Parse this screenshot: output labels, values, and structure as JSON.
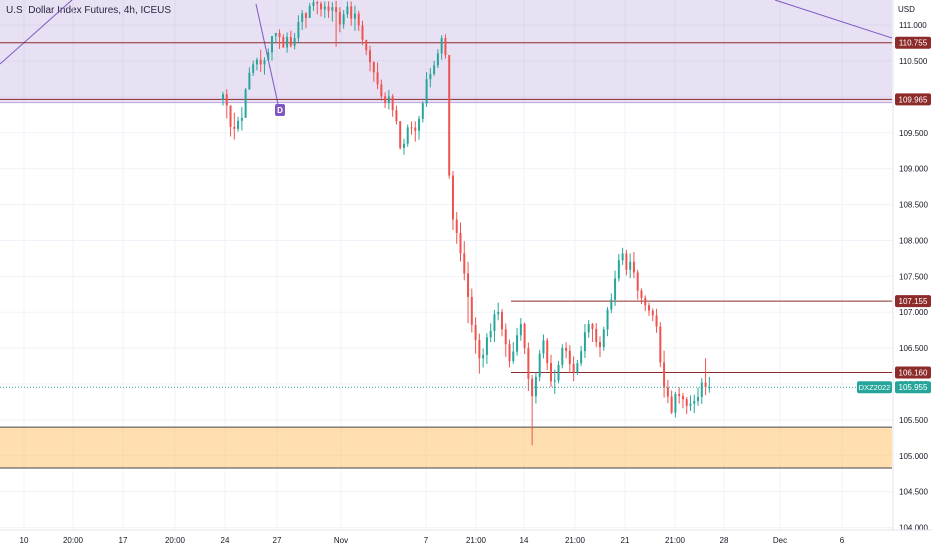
{
  "chart_data": {
    "type": "candlestick",
    "title": "U.S. Dollar Index Futures, 4h, ICEUS",
    "currency": "USD",
    "symbol": "DXZ2022",
    "last_price": "105.955",
    "y_range": [
      103.98,
      111.35
    ],
    "y_ticks": [
      "111.000",
      "110.500",
      "110.000",
      "109.500",
      "109.000",
      "108.500",
      "108.000",
      "107.500",
      "107.000",
      "106.500",
      "106.000",
      "105.500",
      "105.000",
      "104.500",
      "104.000"
    ],
    "x_ticks": [
      "10",
      "20:00",
      "17",
      "20:00",
      "24",
      "27",
      "Nov",
      "7",
      "21:00",
      "14",
      "21:00",
      "21",
      "21:00",
      "28",
      "Dec",
      "6"
    ],
    "price_lines": [
      {
        "label": "110.755",
        "value": 110.755
      },
      {
        "label": "109.965",
        "value": 109.965
      },
      {
        "label": "107.155",
        "value": 107.155
      },
      {
        "label": "106.160",
        "value": 106.16
      }
    ],
    "zones": [
      {
        "top": 111.4,
        "bottom": 109.92,
        "color": "#7e57c2"
      },
      {
        "top": 105.4,
        "bottom": 104.83,
        "color": "#ffb74d"
      }
    ],
    "marker": {
      "label": "D"
    },
    "candles": [
      [
        109.962,
        110.036,
        109.881,
        110.071
      ],
      [
        110.036,
        109.881,
        109.701,
        110.107
      ],
      [
        109.881,
        109.583,
        109.448,
        109.881
      ],
      [
        109.583,
        109.554,
        109.406,
        109.779
      ],
      [
        109.554,
        109.667,
        109.516,
        109.723
      ],
      [
        109.667,
        109.709,
        109.533,
        109.86
      ],
      [
        109.709,
        110.102,
        109.709,
        110.123
      ],
      [
        110.102,
        110.335,
        110.099,
        110.413
      ],
      [
        110.335,
        110.453,
        110.294,
        110.505
      ],
      [
        110.453,
        110.52,
        110.369,
        110.546
      ],
      [
        110.52,
        110.453,
        110.348,
        110.658
      ],
      [
        110.453,
        110.509,
        110.311,
        110.552
      ],
      [
        110.509,
        110.623,
        110.509,
        110.676
      ],
      [
        110.623,
        110.849,
        110.507,
        110.849
      ],
      [
        110.849,
        110.891,
        110.755,
        110.891
      ],
      [
        110.891,
        110.834,
        110.668,
        110.942
      ],
      [
        110.834,
        110.69,
        110.682,
        110.874
      ],
      [
        110.69,
        110.835,
        110.618,
        110.898
      ],
      [
        110.835,
        110.713,
        110.689,
        110.924
      ],
      [
        110.713,
        110.818,
        110.664,
        110.89
      ],
      [
        110.818,
        111.044,
        110.75,
        111.137
      ],
      [
        111.044,
        111.165,
        110.932,
        111.21
      ],
      [
        111.165,
        111.1,
        110.956,
        111.18
      ],
      [
        111.1,
        111.268,
        111.1,
        111.31
      ],
      [
        111.268,
        111.32,
        111.2,
        111.35
      ],
      [
        111.32,
        111.3,
        111.15,
        111.34
      ],
      [
        111.3,
        111.22,
        111.12,
        111.33
      ],
      [
        111.22,
        111.26,
        111.1,
        111.33
      ],
      [
        111.26,
        111.2,
        111.1,
        111.33
      ],
      [
        111.2,
        111.25,
        111.05,
        111.32
      ],
      [
        111.25,
        111.18,
        110.7,
        111.34
      ],
      [
        111.18,
        111.01,
        110.9,
        111.25
      ],
      [
        111.01,
        111.15,
        110.95,
        111.21
      ],
      [
        111.15,
        111.26,
        111.1,
        111.33
      ],
      [
        111.26,
        111.09,
        110.99,
        111.33
      ],
      [
        111.09,
        111.16,
        110.92,
        111.27
      ],
      [
        111.16,
        110.996,
        110.92,
        111.2
      ],
      [
        110.996,
        110.795,
        110.72,
        111.06
      ],
      [
        110.795,
        110.648,
        110.582,
        110.795
      ],
      [
        110.648,
        110.484,
        110.355,
        110.713
      ],
      [
        110.484,
        110.342,
        110.211,
        110.497
      ],
      [
        110.342,
        110.174,
        110.108,
        110.48
      ],
      [
        110.174,
        110.008,
        109.949,
        110.24
      ],
      [
        110.008,
        109.918,
        109.846,
        110.063
      ],
      [
        109.918,
        110.006,
        109.826,
        110.096
      ],
      [
        110.006,
        109.814,
        109.722,
        110.039
      ],
      [
        109.814,
        109.66,
        109.615,
        109.879
      ],
      [
        109.66,
        109.289,
        109.265,
        109.664
      ],
      [
        109.289,
        109.347,
        109.193,
        109.418
      ],
      [
        109.347,
        109.575,
        109.303,
        109.615
      ],
      [
        109.575,
        109.571,
        109.472,
        109.659
      ],
      [
        109.571,
        109.528,
        109.377,
        109.659
      ],
      [
        109.528,
        109.694,
        109.404,
        109.738
      ],
      [
        109.694,
        109.911,
        109.644,
        109.94
      ],
      [
        109.911,
        110.247,
        109.861,
        110.345
      ],
      [
        110.247,
        110.318,
        110.134,
        110.405
      ],
      [
        110.318,
        110.439,
        110.295,
        110.502
      ],
      [
        110.439,
        110.606,
        110.401,
        110.663
      ],
      [
        110.606,
        110.82,
        110.517,
        110.858
      ],
      [
        110.82,
        110.582,
        110.533,
        110.872
      ],
      [
        110.582,
        108.904,
        108.859,
        110.586
      ],
      [
        108.904,
        108.292,
        108.146,
        108.969
      ],
      [
        108.292,
        108.105,
        107.954,
        108.395
      ],
      [
        108.105,
        107.819,
        107.706,
        108.25
      ],
      [
        107.819,
        107.54,
        107.444,
        107.99
      ],
      [
        107.54,
        107.213,
        106.848,
        107.704
      ],
      [
        107.213,
        106.824,
        106.718,
        107.33
      ],
      [
        106.824,
        106.614,
        106.422,
        106.929
      ],
      [
        106.614,
        106.357,
        106.144,
        106.703
      ],
      [
        106.357,
        106.405,
        106.229,
        106.495
      ],
      [
        106.405,
        106.65,
        106.28,
        106.706
      ],
      [
        106.65,
        106.739,
        106.582,
        106.847
      ],
      [
        106.739,
        106.972,
        106.585,
        107.031
      ],
      [
        106.972,
        107.004,
        106.888,
        107.134
      ],
      [
        107.004,
        106.763,
        106.664,
        107.045
      ],
      [
        106.763,
        106.555,
        106.381,
        106.842
      ],
      [
        106.555,
        106.319,
        106.231,
        106.62
      ],
      [
        106.319,
        106.451,
        106.28,
        106.583
      ],
      [
        106.451,
        106.68,
        106.395,
        106.78
      ],
      [
        106.68,
        106.838,
        106.603,
        106.919
      ],
      [
        106.838,
        106.5,
        106.418,
        106.855
      ],
      [
        106.5,
        106.073,
        105.901,
        106.577
      ],
      [
        106.073,
        105.829,
        105.146,
        106.129
      ],
      [
        105.829,
        106.1,
        105.729,
        106.163
      ],
      [
        106.1,
        106.424,
        106.039,
        106.476
      ],
      [
        106.424,
        106.608,
        106.356,
        106.69
      ],
      [
        106.608,
        106.292,
        106.192,
        106.64
      ],
      [
        106.292,
        106.036,
        105.957,
        106.409
      ],
      [
        106.036,
        106.049,
        105.863,
        106.2
      ],
      [
        106.049,
        106.266,
        106.01,
        106.322
      ],
      [
        106.266,
        106.503,
        106.218,
        106.553
      ],
      [
        106.503,
        106.462,
        106.359,
        106.581
      ],
      [
        106.462,
        106.279,
        106.155,
        106.541
      ],
      [
        106.279,
        106.161,
        106.04,
        106.385
      ],
      [
        106.161,
        106.29,
        106.128,
        106.337
      ],
      [
        106.29,
        106.458,
        106.249,
        106.53
      ],
      [
        106.458,
        106.72,
        106.363,
        106.836
      ],
      [
        106.72,
        106.834,
        106.645,
        106.891
      ],
      [
        106.834,
        106.768,
        106.585,
        106.851
      ],
      [
        106.768,
        106.586,
        106.513,
        106.847
      ],
      [
        106.586,
        106.514,
        106.376,
        106.665
      ],
      [
        106.514,
        106.76,
        106.462,
        106.8
      ],
      [
        106.76,
        107.038,
        106.667,
        107.072
      ],
      [
        107.038,
        107.175,
        106.988,
        107.264
      ],
      [
        107.175,
        107.471,
        107.088,
        107.581
      ],
      [
        107.471,
        107.724,
        107.429,
        107.811
      ],
      [
        107.724,
        107.818,
        107.661,
        107.898
      ],
      [
        107.818,
        107.591,
        107.514,
        107.87
      ],
      [
        107.591,
        107.704,
        107.475,
        107.819
      ],
      [
        107.704,
        107.554,
        107.474,
        107.838
      ],
      [
        107.554,
        107.302,
        107.176,
        107.592
      ],
      [
        107.302,
        107.2,
        107.113,
        107.332
      ],
      [
        107.2,
        107.096,
        107.015,
        107.236
      ],
      [
        107.096,
        107.022,
        106.95,
        107.132
      ],
      [
        107.022,
        106.956,
        106.874,
        107.053
      ],
      [
        106.956,
        106.8,
        106.713,
        107.048
      ],
      [
        106.8,
        106.3,
        106.234,
        106.862
      ],
      [
        106.3,
        105.953,
        105.81,
        106.465
      ],
      [
        105.953,
        105.826,
        105.733,
        106.057
      ],
      [
        105.826,
        105.601,
        105.582,
        105.91
      ],
      [
        105.601,
        105.86,
        105.534,
        105.892
      ],
      [
        105.86,
        105.833,
        105.727,
        105.954
      ],
      [
        105.833,
        105.789,
        105.661,
        105.873
      ],
      [
        105.789,
        105.696,
        105.58,
        105.82
      ],
      [
        105.696,
        105.725,
        105.624,
        105.841
      ],
      [
        105.725,
        105.764,
        105.595,
        105.851
      ],
      [
        105.764,
        105.819,
        105.696,
        105.949
      ],
      [
        105.819,
        106.02,
        105.722,
        106.082
      ],
      [
        106.02,
        105.955,
        105.845,
        106.36
      ],
      [
        105.955,
        105.955,
        105.88,
        106.1
      ]
    ]
  },
  "colors": {
    "up": "#26a69a",
    "down": "#ef5350",
    "level_line": "#8d2a2a",
    "last_price_line": "#26a69a",
    "axis_text": "#131722",
    "grid": "#f0f3fa"
  }
}
